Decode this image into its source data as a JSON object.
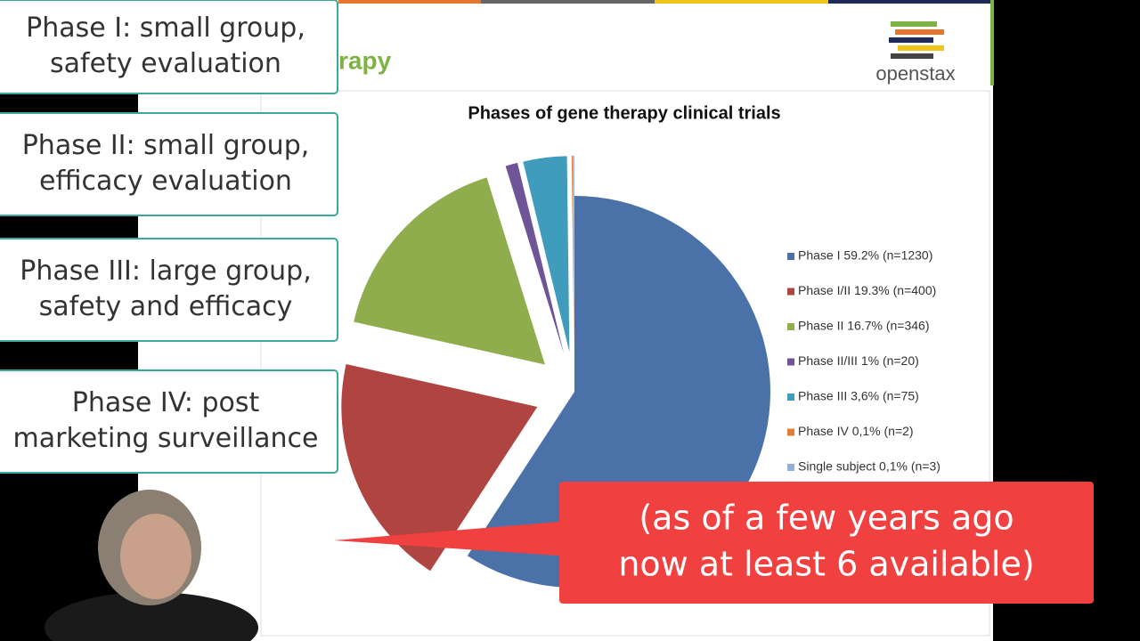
{
  "chart_data": {
    "type": "pie",
    "title": "Phases of gene therapy clinical trials",
    "series": [
      {
        "name": "Phase I 59.2% (n=1230)",
        "color": "#4a72a8",
        "values": [
          59.2
        ]
      },
      {
        "name": "Phase I/II 19.3% (n=400)",
        "color": "#b04440",
        "values": [
          19.3
        ]
      },
      {
        "name": "Phase II 16.7% (n=346)",
        "color": "#8fad4c",
        "values": [
          16.7
        ]
      },
      {
        "name": "Phase II/III 1% (n=20)",
        "color": "#6f5597",
        "values": [
          1
        ]
      },
      {
        "name": "Phase III 3,6% (n=75)",
        "color": "#3f9cbc",
        "values": [
          3.6
        ]
      },
      {
        "name": "Phase IV 0,1% (n=2)",
        "color": "#e07f35",
        "values": [
          0.1
        ]
      },
      {
        "name": "Single subject 0,1% (n=3)",
        "color": "#94afd6",
        "values": [
          0.1
        ]
      }
    ],
    "legend": "right"
  },
  "slide": {
    "heading": "rapy",
    "logo": "openstax"
  },
  "overlays": {
    "boxes": [
      [
        "Phase I: small group,",
        "safety evaluation"
      ],
      [
        "Phase II: small group,",
        "efficacy evaluation"
      ],
      [
        "Phase III: large group,",
        "safety and efficacy"
      ],
      [
        "Phase IV: post",
        "marketing surveillance"
      ]
    ],
    "callout": [
      "(as of a few years ago",
      "now at least 6 available)"
    ]
  }
}
